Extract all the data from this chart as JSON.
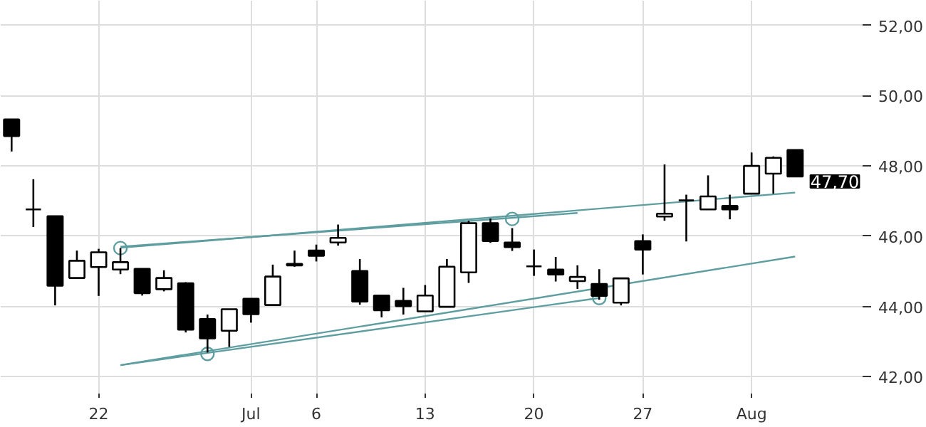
{
  "chart_data": {
    "type": "candlestick",
    "categories": [
      null,
      null,
      null,
      null,
      "22",
      null,
      null,
      null,
      null,
      null,
      null,
      "Jul",
      null,
      null,
      "6",
      null,
      null,
      null,
      null,
      "13",
      null,
      null,
      null,
      null,
      "20",
      null,
      null,
      null,
      null,
      "27",
      null,
      null,
      null,
      null,
      "Aug",
      null,
      null
    ],
    "ohlc": [
      [
        49.32,
        49.32,
        48.41,
        48.85
      ],
      [
        46.76,
        47.62,
        46.26,
        46.76
      ],
      [
        46.57,
        46.57,
        44.03,
        44.59
      ],
      [
        44.81,
        45.59,
        44.81,
        45.3
      ],
      [
        45.12,
        45.64,
        44.3,
        45.54
      ],
      [
        45.05,
        45.66,
        44.92,
        45.26
      ],
      [
        45.07,
        45.07,
        44.31,
        44.38
      ],
      [
        44.49,
        45.03,
        44.43,
        44.81
      ],
      [
        44.66,
        44.69,
        43.26,
        43.34
      ],
      [
        43.64,
        43.77,
        42.69,
        43.09
      ],
      [
        43.31,
        43.92,
        42.85,
        43.92
      ],
      [
        44.22,
        44.22,
        43.54,
        43.78
      ],
      [
        44.04,
        45.19,
        44.04,
        44.85
      ],
      [
        45.21,
        45.59,
        45.13,
        45.17
      ],
      [
        45.59,
        45.76,
        45.28,
        45.44
      ],
      [
        45.82,
        46.33,
        45.73,
        45.95
      ],
      [
        45.01,
        45.35,
        44.05,
        44.14
      ],
      [
        44.31,
        44.31,
        43.69,
        43.89
      ],
      [
        44.16,
        44.53,
        43.77,
        44.01
      ],
      [
        43.86,
        44.61,
        43.86,
        44.31
      ],
      [
        43.99,
        45.35,
        43.99,
        45.13
      ],
      [
        44.97,
        46.44,
        44.67,
        46.37
      ],
      [
        46.37,
        46.5,
        45.81,
        45.86
      ],
      [
        45.82,
        46.23,
        45.58,
        45.69
      ],
      [
        45.14,
        45.62,
        44.87,
        45.14
      ],
      [
        45.05,
        45.41,
        44.71,
        44.91
      ],
      [
        44.72,
        45.17,
        44.5,
        44.84
      ],
      [
        44.64,
        45.06,
        44.19,
        44.3
      ],
      [
        44.11,
        44.8,
        44.03,
        44.8
      ],
      [
        45.86,
        46.05,
        44.91,
        45.62
      ],
      [
        46.56,
        48.04,
        46.44,
        46.64
      ],
      [
        47.02,
        47.18,
        45.85,
        47.02
      ],
      [
        46.76,
        47.73,
        46.76,
        47.13
      ],
      [
        46.86,
        47.18,
        46.48,
        46.76
      ],
      [
        47.21,
        48.38,
        47.21,
        48.0
      ],
      [
        47.78,
        48.27,
        47.21,
        48.23
      ],
      [
        48.45,
        48.45,
        47.69,
        47.7
      ]
    ],
    "colors": [
      "#000000",
      "#000000",
      "#000000",
      "#ffffff",
      "#ffffff",
      "#ffffff",
      "#000000",
      "#ffffff",
      "#000000",
      "#000000",
      "#ffffff",
      "#000000",
      "#ffffff",
      "#000000",
      "#000000",
      "#ffffff",
      "#000000",
      "#000000",
      "#000000",
      "#ffffff",
      "#ffffff",
      "#ffffff",
      "#000000",
      "#000000",
      "#000000",
      "#000000",
      "#ffffff",
      "#000000",
      "#ffffff",
      "#000000",
      "#ffffff",
      "#000000",
      "#ffffff",
      "#000000",
      "#ffffff",
      "#ffffff",
      "#000000"
    ],
    "series": [
      {
        "type": "line",
        "color": "#5f9ea0",
        "values": [
          null,
          null,
          null,
          null,
          null,
          45.67,
          null,
          null,
          null,
          null,
          null,
          null,
          null,
          null,
          null,
          null,
          null,
          null,
          null,
          null,
          null,
          null,
          null,
          null,
          null,
          null,
          null,
          null,
          null,
          null,
          null,
          null,
          null,
          null,
          null,
          null,
          47.24
        ]
      },
      {
        "type": "line",
        "color": "#5f9ea0",
        "values": [
          null,
          null,
          null,
          null,
          null,
          45.7,
          null,
          null,
          null,
          null,
          null,
          null,
          null,
          null,
          null,
          null,
          null,
          null,
          null,
          null,
          null,
          null,
          null,
          null,
          null,
          null,
          46.66,
          null,
          null,
          null,
          null,
          null,
          null,
          null,
          null,
          null,
          null
        ]
      },
      {
        "type": "line",
        "color": "#5f9ea0",
        "values": [
          null,
          null,
          null,
          null,
          null,
          42.33,
          null,
          null,
          null,
          null,
          null,
          null,
          null,
          null,
          null,
          null,
          null,
          null,
          null,
          null,
          null,
          null,
          null,
          null,
          null,
          null,
          null,
          null,
          null,
          null,
          null,
          null,
          null,
          null,
          null,
          null,
          45.42
        ]
      },
      {
        "type": "line",
        "color": "#5f9ea0",
        "values": [
          null,
          null,
          null,
          null,
          null,
          42.33,
          null,
          null,
          null,
          null,
          null,
          null,
          null,
          null,
          null,
          null,
          null,
          null,
          null,
          null,
          null,
          null,
          null,
          null,
          null,
          null,
          null,
          44.24,
          null,
          null,
          null,
          null,
          null,
          null,
          null,
          null,
          null
        ]
      },
      {
        "type": "scatter",
        "marker": "circle",
        "color": "#5f9ea0",
        "values": [
          null,
          null,
          null,
          null,
          null,
          45.66,
          null,
          null,
          null,
          42.65,
          null,
          null,
          null,
          null,
          null,
          null,
          null,
          null,
          null,
          null,
          null,
          null,
          null,
          46.49,
          null,
          null,
          null,
          44.24,
          null,
          null,
          null,
          null,
          null,
          null,
          null,
          null,
          null
        ]
      }
    ],
    "ylim": [
      41.4,
      52.7
    ],
    "yticks": [
      {
        "value": 42,
        "label": "42,00"
      },
      {
        "value": 44,
        "label": "44,00"
      },
      {
        "value": 46,
        "label": "46,00"
      },
      {
        "value": 48,
        "label": "48,00"
      },
      {
        "value": 50,
        "label": "50,00"
      },
      {
        "value": 52,
        "label": "52,00"
      }
    ],
    "grid": true,
    "annotations": [
      "47,70"
    ]
  }
}
